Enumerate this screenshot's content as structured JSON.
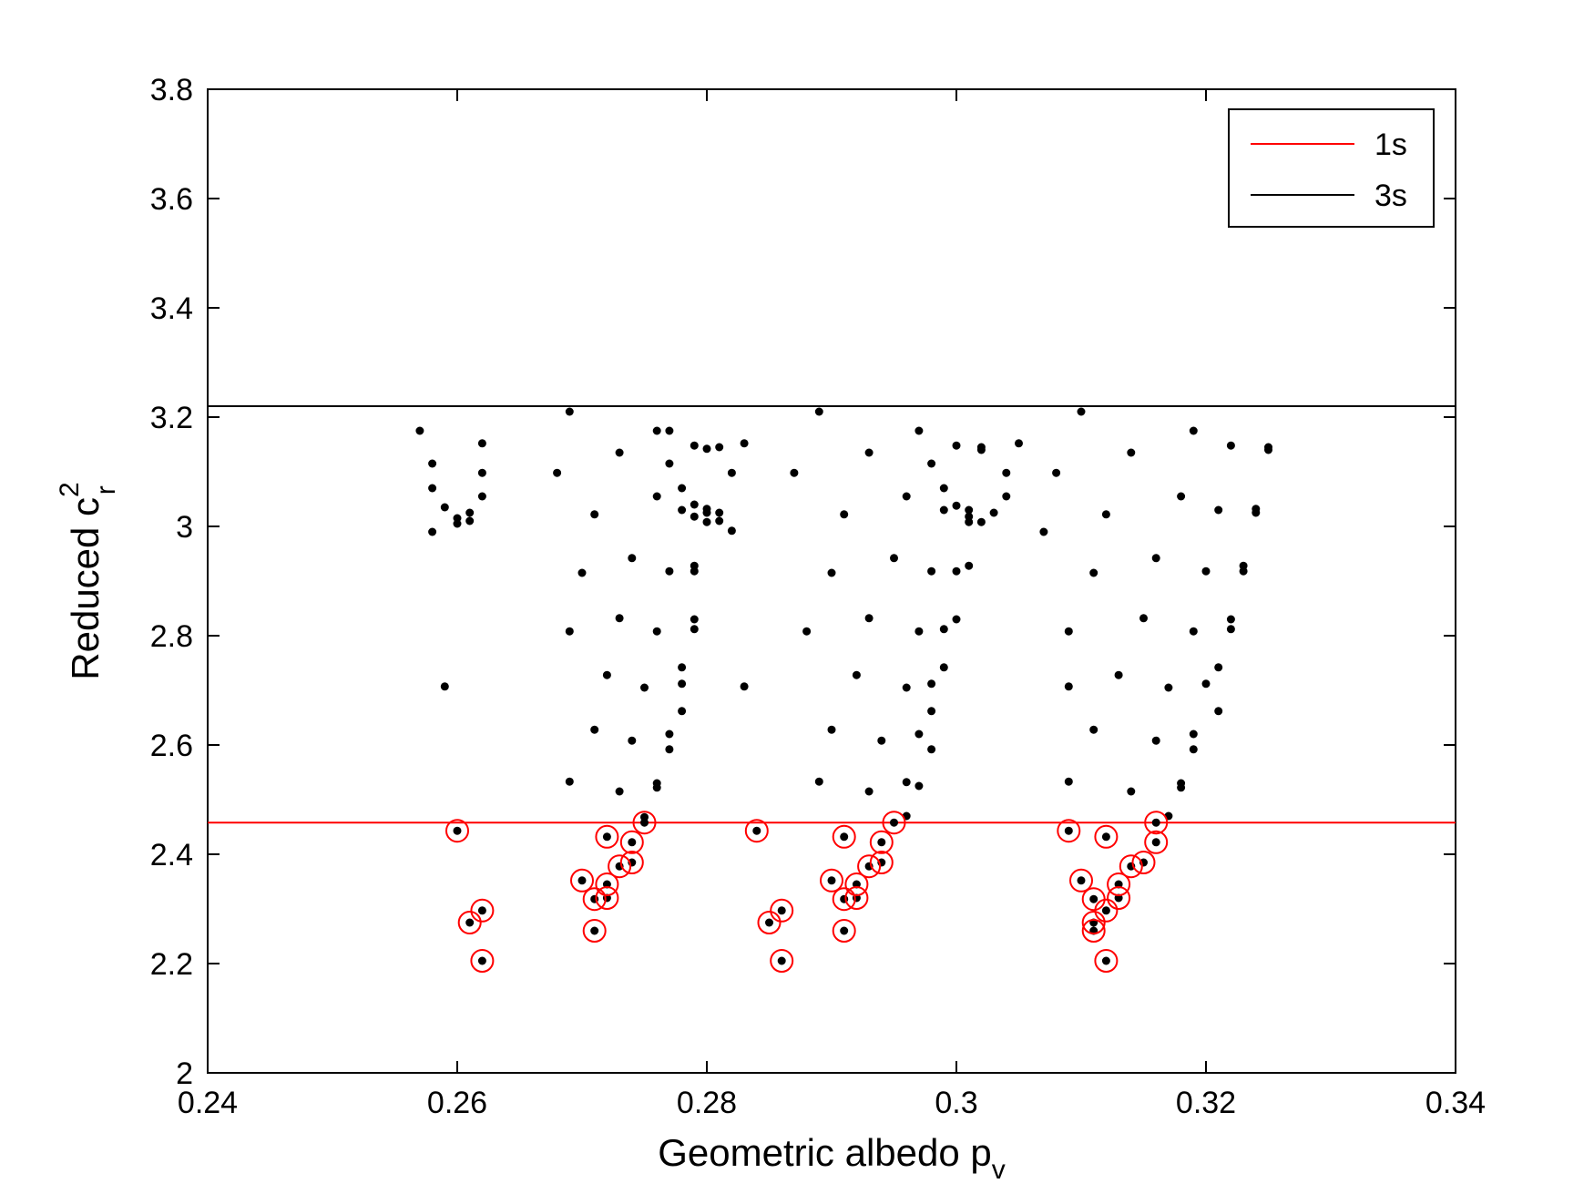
{
  "chart_data": {
    "type": "scatter",
    "title": "",
    "xlabel": "Geometric albedo p",
    "xlabel_sub": "v",
    "ylabel": "Reduced c",
    "ylabel_sup": "2",
    "ylabel_sub": "r",
    "xlim": [
      0.24,
      0.34
    ],
    "ylim": [
      2.0,
      3.8
    ],
    "xticks": [
      0.24,
      0.26,
      0.28,
      0.3,
      0.32,
      0.34
    ],
    "xtick_labels": [
      "0.24",
      "0.26",
      "0.28",
      "0.3",
      "0.32",
      "0.34"
    ],
    "yticks": [
      2.0,
      2.2,
      2.4,
      2.6,
      2.8,
      3.0,
      3.2,
      3.4,
      3.6,
      3.8
    ],
    "ytick_labels": [
      "2",
      "2.2",
      "2.4",
      "2.6",
      "2.8",
      "3",
      "3.2",
      "3.4",
      "3.6",
      "3.8"
    ],
    "grid": false,
    "legend_position": "top-right",
    "colors": {
      "sigma1": "#ff0000",
      "sigma3": "#000000",
      "points": "#000000",
      "circles": "#ff0000"
    },
    "legend": [
      {
        "label": "1s",
        "color": "#ff0000"
      },
      {
        "label": "3s",
        "color": "#000000"
      }
    ],
    "hlines": [
      {
        "name": "1s",
        "y": 2.458,
        "color": "#ff0000"
      },
      {
        "name": "3s",
        "y": 3.22,
        "color": "#000000"
      }
    ],
    "points": [
      [
        0.257,
        3.175
      ],
      [
        0.258,
        3.115
      ],
      [
        0.258,
        3.07
      ],
      [
        0.258,
        2.99
      ],
      [
        0.259,
        3.035
      ],
      [
        0.26,
        3.015
      ],
      [
        0.26,
        3.005
      ],
      [
        0.261,
        3.025
      ],
      [
        0.261,
        3.01
      ],
      [
        0.262,
        3.152
      ],
      [
        0.262,
        3.098
      ],
      [
        0.262,
        3.055
      ],
      [
        0.259,
        2.707
      ],
      [
        0.268,
        3.098
      ],
      [
        0.269,
        3.21
      ],
      [
        0.269,
        2.808
      ],
      [
        0.269,
        2.533
      ],
      [
        0.27,
        2.915
      ],
      [
        0.271,
        3.022
      ],
      [
        0.271,
        2.628
      ],
      [
        0.272,
        2.728
      ],
      [
        0.273,
        3.135
      ],
      [
        0.273,
        2.832
      ],
      [
        0.273,
        2.515
      ],
      [
        0.274,
        2.942
      ],
      [
        0.274,
        2.608
      ],
      [
        0.275,
        2.705
      ],
      [
        0.275,
        2.468
      ],
      [
        0.276,
        3.175
      ],
      [
        0.276,
        3.055
      ],
      [
        0.276,
        2.808
      ],
      [
        0.276,
        2.53
      ],
      [
        0.276,
        2.522
      ],
      [
        0.277,
        3.175
      ],
      [
        0.277,
        3.115
      ],
      [
        0.277,
        2.918
      ],
      [
        0.277,
        2.62
      ],
      [
        0.277,
        2.592
      ],
      [
        0.278,
        3.07
      ],
      [
        0.278,
        3.03
      ],
      [
        0.278,
        2.742
      ],
      [
        0.278,
        2.712
      ],
      [
        0.278,
        2.662
      ],
      [
        0.279,
        3.148
      ],
      [
        0.279,
        3.04
      ],
      [
        0.279,
        3.018
      ],
      [
        0.279,
        2.928
      ],
      [
        0.279,
        2.918
      ],
      [
        0.279,
        2.83
      ],
      [
        0.279,
        2.812
      ],
      [
        0.28,
        3.142
      ],
      [
        0.28,
        3.032
      ],
      [
        0.28,
        3.025
      ],
      [
        0.28,
        3.008
      ],
      [
        0.281,
        3.145
      ],
      [
        0.281,
        3.025
      ],
      [
        0.281,
        3.01
      ],
      [
        0.282,
        3.098
      ],
      [
        0.282,
        2.992
      ],
      [
        0.283,
        3.152
      ],
      [
        0.283,
        2.707
      ],
      [
        0.287,
        3.098
      ],
      [
        0.288,
        2.808
      ],
      [
        0.289,
        3.21
      ],
      [
        0.289,
        2.533
      ],
      [
        0.29,
        2.915
      ],
      [
        0.29,
        2.628
      ],
      [
        0.291,
        3.022
      ],
      [
        0.292,
        2.728
      ],
      [
        0.293,
        3.135
      ],
      [
        0.293,
        2.832
      ],
      [
        0.293,
        2.515
      ],
      [
        0.294,
        2.608
      ],
      [
        0.295,
        2.942
      ],
      [
        0.296,
        3.055
      ],
      [
        0.296,
        2.705
      ],
      [
        0.296,
        2.532
      ],
      [
        0.296,
        2.47
      ],
      [
        0.297,
        3.175
      ],
      [
        0.297,
        2.808
      ],
      [
        0.297,
        2.62
      ],
      [
        0.297,
        2.525
      ],
      [
        0.298,
        3.115
      ],
      [
        0.298,
        2.918
      ],
      [
        0.298,
        2.712
      ],
      [
        0.298,
        2.662
      ],
      [
        0.298,
        2.592
      ],
      [
        0.299,
        3.07
      ],
      [
        0.299,
        3.03
      ],
      [
        0.299,
        2.812
      ],
      [
        0.299,
        2.742
      ],
      [
        0.3,
        3.148
      ],
      [
        0.3,
        3.038
      ],
      [
        0.3,
        2.918
      ],
      [
        0.3,
        2.83
      ],
      [
        0.301,
        3.03
      ],
      [
        0.301,
        3.018
      ],
      [
        0.301,
        3.008
      ],
      [
        0.301,
        2.928
      ],
      [
        0.302,
        3.145
      ],
      [
        0.302,
        3.14
      ],
      [
        0.302,
        3.008
      ],
      [
        0.303,
        3.025
      ],
      [
        0.304,
        3.098
      ],
      [
        0.304,
        3.055
      ],
      [
        0.305,
        3.152
      ],
      [
        0.307,
        2.99
      ],
      [
        0.308,
        3.098
      ],
      [
        0.309,
        2.808
      ],
      [
        0.309,
        2.707
      ],
      [
        0.309,
        2.533
      ],
      [
        0.31,
        3.21
      ],
      [
        0.311,
        2.915
      ],
      [
        0.311,
        2.628
      ],
      [
        0.312,
        3.022
      ],
      [
        0.313,
        2.728
      ],
      [
        0.314,
        3.135
      ],
      [
        0.314,
        2.515
      ],
      [
        0.315,
        2.832
      ],
      [
        0.316,
        2.942
      ],
      [
        0.316,
        2.608
      ],
      [
        0.317,
        2.705
      ],
      [
        0.317,
        2.47
      ],
      [
        0.318,
        3.055
      ],
      [
        0.318,
        2.53
      ],
      [
        0.318,
        2.522
      ],
      [
        0.319,
        3.175
      ],
      [
        0.319,
        2.808
      ],
      [
        0.319,
        2.62
      ],
      [
        0.319,
        2.592
      ],
      [
        0.32,
        2.918
      ],
      [
        0.32,
        2.712
      ],
      [
        0.321,
        3.03
      ],
      [
        0.321,
        2.742
      ],
      [
        0.321,
        2.662
      ],
      [
        0.322,
        3.148
      ],
      [
        0.322,
        2.83
      ],
      [
        0.322,
        2.812
      ],
      [
        0.323,
        2.928
      ],
      [
        0.323,
        2.918
      ],
      [
        0.324,
        3.032
      ],
      [
        0.324,
        3.025
      ],
      [
        0.325,
        3.145
      ],
      [
        0.325,
        3.14
      ]
    ],
    "circled_points": [
      [
        0.26,
        2.443
      ],
      [
        0.261,
        2.275
      ],
      [
        0.262,
        2.297
      ],
      [
        0.262,
        2.205
      ],
      [
        0.27,
        2.352
      ],
      [
        0.271,
        2.318
      ],
      [
        0.271,
        2.26
      ],
      [
        0.272,
        2.432
      ],
      [
        0.272,
        2.345
      ],
      [
        0.272,
        2.32
      ],
      [
        0.273,
        2.378
      ],
      [
        0.274,
        2.422
      ],
      [
        0.274,
        2.385
      ],
      [
        0.275,
        2.458
      ],
      [
        0.284,
        2.443
      ],
      [
        0.285,
        2.275
      ],
      [
        0.286,
        2.297
      ],
      [
        0.286,
        2.205
      ],
      [
        0.29,
        2.352
      ],
      [
        0.291,
        2.432
      ],
      [
        0.291,
        2.318
      ],
      [
        0.291,
        2.26
      ],
      [
        0.292,
        2.345
      ],
      [
        0.292,
        2.32
      ],
      [
        0.293,
        2.378
      ],
      [
        0.294,
        2.422
      ],
      [
        0.294,
        2.385
      ],
      [
        0.295,
        2.458
      ],
      [
        0.309,
        2.443
      ],
      [
        0.31,
        2.352
      ],
      [
        0.311,
        2.318
      ],
      [
        0.311,
        2.275
      ],
      [
        0.311,
        2.26
      ],
      [
        0.312,
        2.432
      ],
      [
        0.312,
        2.297
      ],
      [
        0.312,
        2.205
      ],
      [
        0.313,
        2.345
      ],
      [
        0.313,
        2.32
      ],
      [
        0.314,
        2.378
      ],
      [
        0.315,
        2.385
      ],
      [
        0.316,
        2.458
      ],
      [
        0.316,
        2.422
      ]
    ]
  }
}
